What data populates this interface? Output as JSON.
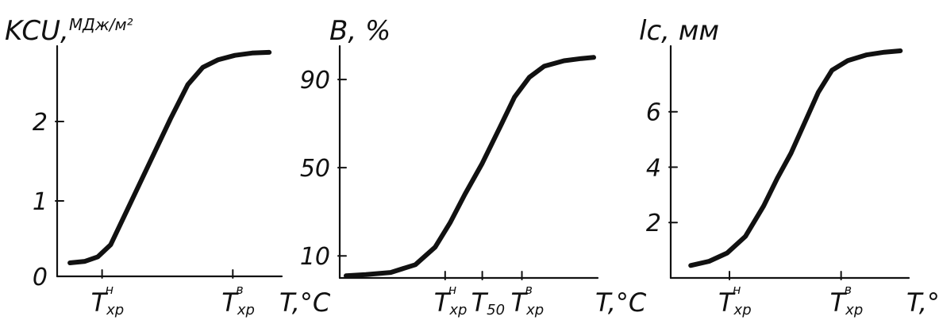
{
  "colors": {
    "ink": "#111111",
    "background": "#ffffff"
  },
  "chart_data": [
    {
      "type": "line",
      "ylabel": "KCU,",
      "ylabel_unit": "МДж/м²",
      "xlabel": "T,°C",
      "x_ticks": [
        {
          "x": 0.18,
          "base": "T",
          "sub": "хр",
          "sup": "н"
        },
        {
          "x": 0.79,
          "base": "T",
          "sub": "хр",
          "sup": "в"
        }
      ],
      "y_ticks": [
        "0",
        "1",
        "2"
      ],
      "ylim": [
        0,
        3.0
      ],
      "xlim": [
        0,
        1
      ],
      "series": [
        {
          "x": [
            0.03,
            0.1,
            0.16,
            0.22,
            0.3,
            0.4,
            0.5,
            0.58,
            0.65,
            0.72,
            0.8,
            0.88,
            0.96
          ],
          "y": [
            0.18,
            0.2,
            0.26,
            0.42,
            0.9,
            1.5,
            2.1,
            2.55,
            2.78,
            2.88,
            2.94,
            2.97,
            2.98
          ]
        }
      ]
    },
    {
      "type": "line",
      "ylabel": "B, %",
      "xlabel": "T,°C",
      "x_ticks": [
        {
          "x": 0.4,
          "base": "T",
          "sub": "хр",
          "sup": "н"
        },
        {
          "x": 0.55,
          "base": "T",
          "sub": "50",
          "sup": ""
        },
        {
          "x": 0.71,
          "base": "T",
          "sub": "хр",
          "sup": "в"
        }
      ],
      "y_ticks": [
        "10",
        "50",
        "90"
      ],
      "ytick_values": [
        10,
        50,
        90
      ],
      "ylim": [
        0,
        103
      ],
      "xlim": [
        0,
        1
      ],
      "series": [
        {
          "x": [
            0.0,
            0.08,
            0.18,
            0.28,
            0.36,
            0.42,
            0.48,
            0.55,
            0.62,
            0.68,
            0.74,
            0.8,
            0.88,
            0.95,
            1.0
          ],
          "y": [
            1,
            1.5,
            2.5,
            6,
            14,
            25,
            38,
            52,
            68,
            82,
            91,
            96,
            98.5,
            99.5,
            100
          ]
        }
      ]
    },
    {
      "type": "line",
      "ylabel": "lc, мм",
      "xlabel": "T,°C",
      "x_ticks": [
        {
          "x": 0.23,
          "base": "T",
          "sub": "хр",
          "sup": "н"
        },
        {
          "x": 0.72,
          "base": "T",
          "sub": "хр",
          "sup": "в"
        }
      ],
      "y_ticks": [
        "2",
        "4",
        "6"
      ],
      "ytick_values": [
        2,
        4,
        6
      ],
      "ylim": [
        0,
        8.2
      ],
      "xlim": [
        0,
        1
      ],
      "series": [
        {
          "x": [
            0.06,
            0.14,
            0.22,
            0.3,
            0.38,
            0.44,
            0.5,
            0.56,
            0.62,
            0.68,
            0.75,
            0.83,
            0.91,
            0.98
          ],
          "y": [
            0.45,
            0.6,
            0.9,
            1.5,
            2.6,
            3.6,
            4.5,
            5.6,
            6.7,
            7.5,
            7.85,
            8.05,
            8.15,
            8.2
          ]
        }
      ]
    }
  ]
}
